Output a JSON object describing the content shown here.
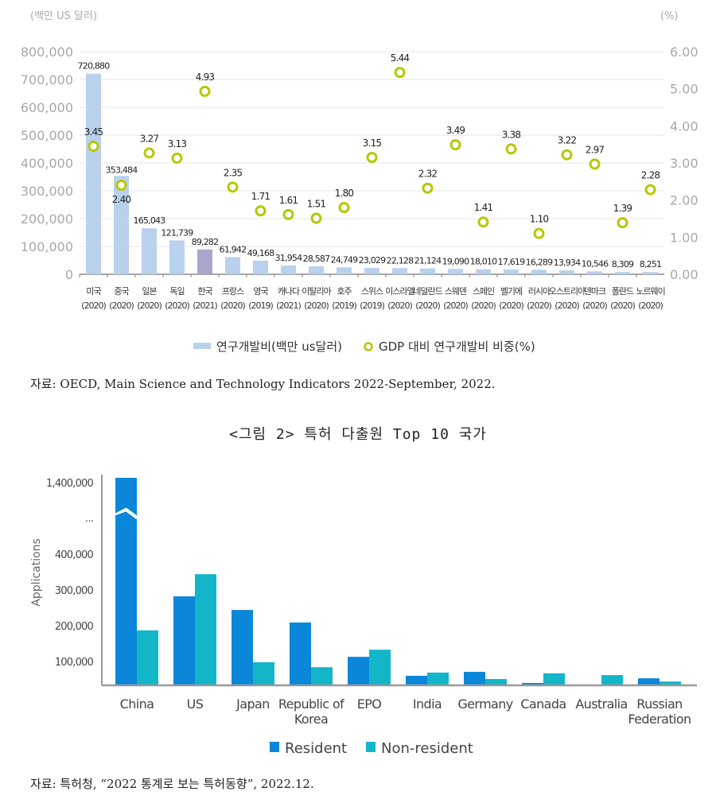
{
  "chart_data": [
    {
      "type": "bar+scatter",
      "left_axis_label": "(백만 US 달러)",
      "right_axis_label": "(%)",
      "left_ticks": [
        "0",
        "100,000",
        "200,000",
        "300,000",
        "400,000",
        "500,000",
        "600,000",
        "700,000",
        "800,000"
      ],
      "right_ticks": [
        "0.00",
        "1.00",
        "2.00",
        "3.00",
        "4.00",
        "5.00",
        "6.00"
      ],
      "ylim_left": [
        0,
        800000
      ],
      "ylim_right": [
        0,
        6
      ],
      "grid": true,
      "categories": [
        {
          "name": "미국",
          "year": "(2020)"
        },
        {
          "name": "중국",
          "year": "(2020)"
        },
        {
          "name": "일본",
          "year": "(2020)"
        },
        {
          "name": "독일",
          "year": "(2020)"
        },
        {
          "name": "한국",
          "year": "(2021)"
        },
        {
          "name": "프랑스",
          "year": "(2020)"
        },
        {
          "name": "영국",
          "year": "(2019)"
        },
        {
          "name": "캐나다",
          "year": "(2021)"
        },
        {
          "name": "이탈리아",
          "year": "(2020)"
        },
        {
          "name": "호주",
          "year": "(2019)"
        },
        {
          "name": "스위스",
          "year": "(2019)"
        },
        {
          "name": "이스라엘",
          "year": "(2020)"
        },
        {
          "name": "네덜란드",
          "year": "(2020)"
        },
        {
          "name": "스웨덴",
          "year": "(2020)"
        },
        {
          "name": "스페인",
          "year": "(2020)"
        },
        {
          "name": "벨기에",
          "year": "(2020)"
        },
        {
          "name": "러시아",
          "year": "(2020)"
        },
        {
          "name": "오스트리아",
          "year": "(2020)"
        },
        {
          "name": "덴마크",
          "year": "(2020)"
        },
        {
          "name": "폴란드",
          "year": "(2020)"
        },
        {
          "name": "노르웨이",
          "year": "(2020)"
        }
      ],
      "series": [
        {
          "name": "연구개발비(백만 us달러)",
          "type": "bar",
          "color": "#b9d1ec",
          "highlight_color": "#a9a7cc",
          "values": [
            720880,
            353484,
            165043,
            121739,
            89282,
            61942,
            49168,
            31954,
            28587,
            24749,
            23029,
            22128,
            21124,
            19090,
            18010,
            17619,
            16289,
            13934,
            10546,
            8309,
            8251
          ],
          "labels": [
            "720,880",
            "353,484",
            "165,043",
            "121,739",
            "89,282",
            "61,942",
            "49,168",
            "31,954",
            "28,587",
            "24,749",
            "23,029",
            "22,128",
            "21,124",
            "19,090",
            "18,010",
            "17,619",
            "16,289",
            "13,934",
            "10,546",
            "8,309",
            "8,251"
          ]
        },
        {
          "name": "GDP 대비 연구개발비 비중(%)",
          "type": "scatter",
          "color": "#b5c800",
          "values": [
            3.45,
            2.4,
            3.27,
            3.13,
            4.93,
            2.35,
            1.71,
            1.61,
            1.51,
            1.8,
            3.15,
            5.44,
            2.32,
            3.49,
            1.41,
            3.38,
            1.1,
            3.22,
            2.97,
            1.39,
            2.28
          ],
          "labels": [
            "3.45",
            "2.40",
            "3.27",
            "3.13",
            "4.93",
            "2.35",
            "1.71",
            "1.61",
            "1.51",
            "1.80",
            "3.15",
            "5.44",
            "2.32",
            "3.49",
            "1.41",
            "3.38",
            "1.10",
            "3.22",
            "2.97",
            "1.39",
            "2.28"
          ]
        }
      ],
      "legend_position": "bottom"
    },
    {
      "type": "bar",
      "ylabel": "Applications",
      "y_ticks": [
        "100,000",
        "200,000",
        "300,000",
        "400,000",
        "...",
        "1,400,000"
      ],
      "axis_break": true,
      "categories": [
        "China",
        "US",
        "Japan",
        "Republic of Korea",
        "EPO",
        "India",
        "Germany",
        "Canada",
        "Australia",
        "Russian Federation"
      ],
      "category_lines": [
        [
          "China"
        ],
        [
          "US"
        ],
        [
          "Japan"
        ],
        [
          "Republic of",
          "Korea"
        ],
        [
          "EPO"
        ],
        [
          "India"
        ],
        [
          "Germany"
        ],
        [
          "Canada"
        ],
        [
          "Australia"
        ],
        [
          "Russian",
          "Federation"
        ]
      ],
      "series": [
        {
          "name": "Resident",
          "color": "#0a87d8",
          "values": [
            1400000,
            282000,
            244000,
            209000,
            113000,
            60000,
            71000,
            40000,
            35000,
            53000
          ]
        },
        {
          "name": "Non-resident",
          "color": "#13b6c9",
          "values": [
            187000,
            344000,
            98000,
            84000,
            133000,
            69000,
            51000,
            67000,
            62000,
            44000
          ]
        }
      ],
      "legend_position": "bottom"
    }
  ],
  "captions": {
    "source1": "자료: OECD, Main Science and Technology Indicators 2022-September, 2022.",
    "figure2_title": "<그림 2> 특허 다출원 Top 10 국가",
    "source2": "자료: 특허청, “2022 통계로 보는 특허동향”, 2022.12."
  }
}
